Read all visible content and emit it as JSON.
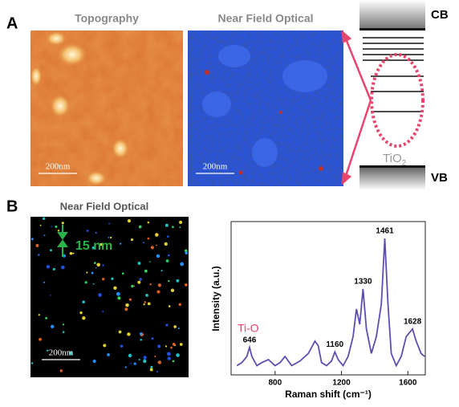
{
  "panels": {
    "a": {
      "label": "A",
      "topography": {
        "title": "Topography",
        "scale_bar": "200nm"
      },
      "optical": {
        "title": "Near Field Optical",
        "scale_bar": "200nm"
      },
      "diagram": {
        "cb": "CB",
        "vb": "VB",
        "material": "TiO",
        "material_sub": "2"
      }
    },
    "b": {
      "label": "B",
      "optical": {
        "title": "Near Field Optical",
        "scale_bar": "200nm",
        "size_label": "15 nm"
      }
    }
  },
  "chart_data": {
    "type": "line",
    "x_label": "Raman shift (cm⁻¹)",
    "y_label": "Intensity (a.u.)",
    "annotation": "Ti-O",
    "color": "#5b4fb0",
    "x": [
      570,
      600,
      630,
      646,
      660,
      690,
      720,
      760,
      800,
      830,
      860,
      900,
      950,
      1000,
      1040,
      1060,
      1080,
      1110,
      1140,
      1160,
      1180,
      1210,
      1240,
      1270,
      1290,
      1310,
      1330,
      1350,
      1380,
      1410,
      1440,
      1461,
      1480,
      1500,
      1530,
      1560,
      1590,
      1628,
      1650,
      1680,
      1700
    ],
    "values": [
      6,
      8,
      12,
      18,
      12,
      6,
      8,
      10,
      6,
      8,
      12,
      6,
      9,
      14,
      22,
      19,
      8,
      6,
      9,
      15,
      10,
      6,
      12,
      25,
      43,
      33,
      56,
      30,
      14,
      25,
      46,
      89,
      46,
      14,
      6,
      12,
      25,
      30,
      22,
      14,
      12
    ],
    "peaks": [
      646,
      1160,
      1330,
      1461,
      1628
    ],
    "xlim": [
      535,
      1705
    ],
    "ylim": [
      0,
      100
    ],
    "xticks": [
      800,
      1200,
      1600
    ]
  }
}
